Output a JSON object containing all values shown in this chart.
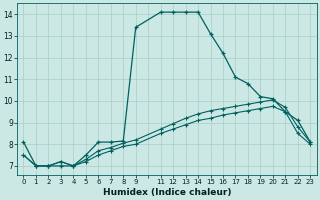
{
  "xlabel": "Humidex (Indice chaleur)",
  "background_color": "#cce8e4",
  "grid_color": "#aaccc8",
  "line_color": "#006060",
  "xlim": [
    -0.5,
    23.5
  ],
  "ylim": [
    6.6,
    14.5
  ],
  "xticks": [
    0,
    1,
    2,
    3,
    4,
    5,
    6,
    7,
    8,
    9,
    10,
    11,
    12,
    13,
    14,
    15,
    16,
    17,
    18,
    19,
    20,
    21,
    22,
    23
  ],
  "xtick_labels": [
    "0",
    "1",
    "2",
    "3",
    "4",
    "5",
    "6",
    "7",
    "8",
    "9",
    "",
    "11",
    "12",
    "13",
    "14",
    "15",
    "16",
    "17",
    "18",
    "19",
    "20",
    "21",
    "22",
    "23"
  ],
  "yticks": [
    7,
    8,
    9,
    10,
    11,
    12,
    13,
    14
  ],
  "curve1_x": [
    0,
    1,
    2,
    3,
    4,
    5,
    6,
    7,
    8,
    9,
    11,
    12,
    13,
    14,
    15,
    16,
    17,
    18,
    19,
    20,
    21,
    22,
    23
  ],
  "curve1_y": [
    8.1,
    7.0,
    7.0,
    7.0,
    7.0,
    7.5,
    8.1,
    8.1,
    8.15,
    13.4,
    14.1,
    14.1,
    14.1,
    14.1,
    13.1,
    12.2,
    11.1,
    10.8,
    10.2,
    10.1,
    9.5,
    9.1,
    8.1
  ],
  "curve2_x": [
    0,
    1,
    2,
    3,
    4,
    5,
    6,
    7,
    8,
    9,
    11,
    12,
    13,
    14,
    15,
    16,
    17,
    18,
    19,
    20,
    21,
    22,
    23
  ],
  "curve2_y": [
    7.5,
    7.0,
    7.0,
    7.2,
    7.0,
    7.2,
    7.5,
    7.7,
    7.9,
    8.0,
    8.5,
    8.7,
    8.9,
    9.1,
    9.2,
    9.35,
    9.45,
    9.55,
    9.65,
    9.75,
    9.5,
    8.5,
    8.0
  ],
  "curve3_x": [
    0,
    1,
    2,
    3,
    4,
    5,
    6,
    7,
    8,
    9,
    11,
    12,
    13,
    14,
    15,
    16,
    17,
    18,
    19,
    20,
    21,
    22,
    23
  ],
  "curve3_y": [
    7.5,
    7.0,
    7.0,
    7.2,
    7.0,
    7.3,
    7.7,
    7.85,
    8.05,
    8.2,
    8.7,
    8.95,
    9.2,
    9.4,
    9.55,
    9.65,
    9.75,
    9.85,
    9.95,
    10.05,
    9.7,
    8.8,
    8.1
  ]
}
